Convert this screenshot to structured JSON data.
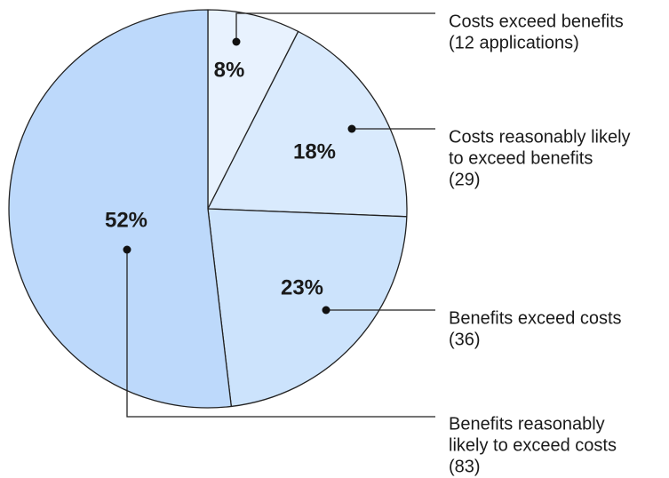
{
  "chart_data": {
    "type": "pie",
    "start": "12 o'clock",
    "direction": "clockwise",
    "slices": [
      {
        "percent_label": "8%",
        "value": 12,
        "label_lines": [
          "Costs exceed benefits",
          "(12 applications)"
        ],
        "color": "#e8f2fe"
      },
      {
        "percent_label": "18%",
        "value": 29,
        "label_lines": [
          "Costs reasonably likely",
          "to exceed benefits",
          "(29)"
        ],
        "color": "#d9eafd"
      },
      {
        "percent_label": "23%",
        "value": 36,
        "label_lines": [
          "Benefits exceed costs",
          "(36)"
        ],
        "color": "#cce3fc"
      },
      {
        "percent_label": "52%",
        "value": 83,
        "label_lines": [
          "Benefits reasonably",
          "likely to exceed costs",
          "(83)"
        ],
        "color": "#bdd9fb"
      }
    ]
  }
}
